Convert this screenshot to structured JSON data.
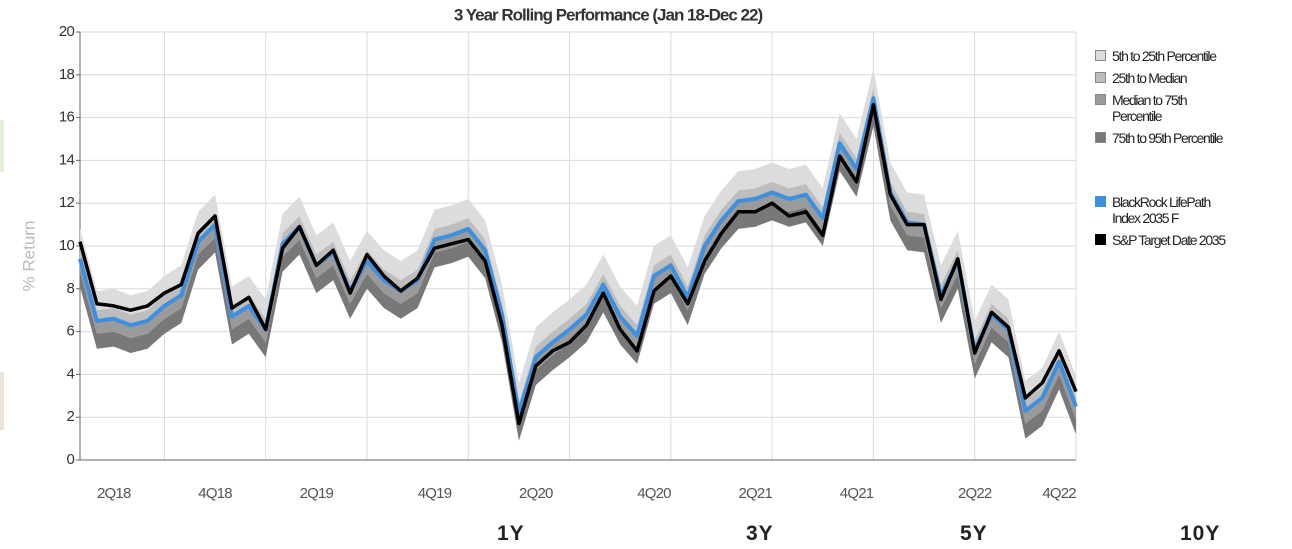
{
  "chart_data": {
    "type": "line",
    "title": "3 Year Rolling Performance (Jan 18-Dec 22)",
    "y_label": "% Return",
    "categories": [
      null,
      null,
      "2Q18",
      null,
      null,
      null,
      null,
      null,
      "4Q18",
      null,
      null,
      null,
      null,
      null,
      "2Q19",
      null,
      null,
      null,
      null,
      null,
      null,
      "4Q19",
      null,
      null,
      null,
      null,
      null,
      "2Q20",
      null,
      null,
      null,
      null,
      null,
      null,
      "4Q20",
      null,
      null,
      null,
      null,
      null,
      "2Q21",
      null,
      null,
      null,
      null,
      null,
      "4Q21",
      null,
      null,
      null,
      null,
      null,
      null,
      "2Q22",
      null,
      null,
      null,
      null,
      "4Q22",
      null
    ],
    "ylim": [
      0,
      20
    ],
    "yticks": [
      0,
      2,
      4,
      6,
      8,
      10,
      12,
      14,
      16,
      18,
      20
    ],
    "grid": true,
    "bands": [
      {
        "name": "5th to 25th Percentile",
        "color": "#dcdcdc",
        "upper": [
          10.8,
          7.9,
          8.0,
          7.7,
          7.9,
          8.6,
          9.1,
          11.6,
          12.4,
          8.1,
          8.6,
          7.5,
          11.5,
          12.3,
          10.5,
          11.1,
          9.3,
          10.7,
          9.8,
          9.3,
          9.8,
          11.7,
          11.9,
          12.2,
          11.2,
          8.2,
          3.6,
          6.2,
          6.9,
          7.5,
          8.2,
          9.6,
          8.1,
          7.2,
          10.0,
          10.5,
          9.0,
          11.4,
          12.6,
          13.5,
          13.6,
          13.9,
          13.6,
          13.8,
          12.7,
          16.2,
          15.0,
          18.3,
          13.9,
          12.5,
          12.4,
          9.1,
          10.7,
          6.5,
          8.2,
          7.5,
          3.7,
          4.3,
          6.0,
          3.9
        ],
        "lower": [
          9.9,
          7.0,
          7.1,
          6.8,
          7.0,
          7.7,
          8.2,
          10.7,
          11.5,
          7.2,
          7.7,
          6.6,
          10.6,
          11.4,
          9.6,
          10.2,
          8.4,
          9.8,
          8.9,
          8.4,
          8.9,
          10.8,
          11.0,
          11.3,
          10.3,
          7.3,
          2.7,
          5.3,
          6.0,
          6.6,
          7.3,
          8.7,
          7.2,
          6.3,
          9.1,
          9.6,
          8.1,
          10.5,
          11.7,
          12.6,
          12.7,
          13.0,
          12.7,
          12.9,
          11.8,
          15.3,
          14.1,
          17.4,
          13.0,
          11.6,
          11.5,
          8.2,
          9.8,
          5.6,
          7.3,
          6.6,
          2.8,
          3.4,
          5.1,
          3.0
        ]
      },
      {
        "name": "25th to Median",
        "color": "#bdbdbd",
        "upper": [
          9.9,
          7.0,
          7.1,
          6.8,
          7.0,
          7.7,
          8.2,
          10.7,
          11.5,
          7.2,
          7.7,
          6.6,
          10.6,
          11.4,
          9.6,
          10.2,
          8.4,
          9.8,
          8.9,
          8.4,
          8.9,
          10.8,
          11.0,
          11.3,
          10.3,
          7.3,
          2.7,
          5.3,
          6.0,
          6.6,
          7.3,
          8.7,
          7.2,
          6.3,
          9.1,
          9.6,
          8.1,
          10.5,
          11.7,
          12.6,
          12.7,
          13.0,
          12.7,
          12.9,
          11.8,
          15.3,
          14.1,
          17.4,
          13.0,
          11.6,
          11.5,
          8.2,
          9.8,
          5.6,
          7.3,
          6.6,
          2.8,
          3.4,
          5.1,
          3.0
        ],
        "lower": [
          9.4,
          6.5,
          6.6,
          6.3,
          6.5,
          7.2,
          7.7,
          10.2,
          11.0,
          6.7,
          7.2,
          6.1,
          10.1,
          10.9,
          9.1,
          9.7,
          7.9,
          9.3,
          8.4,
          7.9,
          8.4,
          10.3,
          10.5,
          10.8,
          9.8,
          6.8,
          2.2,
          4.8,
          5.5,
          6.1,
          6.8,
          8.2,
          6.7,
          5.8,
          8.6,
          9.1,
          7.6,
          10.0,
          11.2,
          12.1,
          12.2,
          12.5,
          12.2,
          12.4,
          11.3,
          14.8,
          13.6,
          16.9,
          12.5,
          11.1,
          11.0,
          7.7,
          9.3,
          5.1,
          6.8,
          6.1,
          2.3,
          2.9,
          4.6,
          2.5
        ]
      },
      {
        "name": "Median to 75th Percentile",
        "color": "#9a9a9a",
        "upper": [
          9.4,
          6.5,
          6.6,
          6.3,
          6.5,
          7.2,
          7.7,
          10.2,
          11.0,
          6.7,
          7.2,
          6.1,
          10.1,
          10.9,
          9.1,
          9.7,
          7.9,
          9.3,
          8.4,
          7.9,
          8.4,
          10.3,
          10.5,
          10.8,
          9.8,
          6.8,
          2.2,
          4.8,
          5.5,
          6.1,
          6.8,
          8.2,
          6.7,
          5.8,
          8.6,
          9.1,
          7.6,
          10.0,
          11.2,
          12.1,
          12.2,
          12.5,
          12.2,
          12.4,
          11.3,
          14.8,
          13.6,
          16.9,
          12.5,
          11.1,
          11.0,
          7.7,
          9.3,
          5.1,
          6.8,
          6.1,
          2.3,
          2.9,
          4.6,
          2.5
        ],
        "lower": [
          8.8,
          5.9,
          6.0,
          5.7,
          5.9,
          6.6,
          7.1,
          9.6,
          10.4,
          6.1,
          6.6,
          5.5,
          9.5,
          10.3,
          8.5,
          9.1,
          7.3,
          8.7,
          7.8,
          7.3,
          7.8,
          9.7,
          9.9,
          10.2,
          9.2,
          6.2,
          1.6,
          4.2,
          4.9,
          5.5,
          6.2,
          7.6,
          6.1,
          5.2,
          8.0,
          8.5,
          7.0,
          9.4,
          10.6,
          11.5,
          11.6,
          11.9,
          11.6,
          11.8,
          10.7,
          14.2,
          13.0,
          16.3,
          11.9,
          10.5,
          10.4,
          7.1,
          8.7,
          4.5,
          6.2,
          5.5,
          1.7,
          2.3,
          4.0,
          1.9
        ]
      },
      {
        "name": "75th to 95th Percentile",
        "color": "#787878",
        "upper": [
          8.8,
          5.9,
          6.0,
          5.7,
          5.9,
          6.6,
          7.1,
          9.6,
          10.4,
          6.1,
          6.6,
          5.5,
          9.5,
          10.3,
          8.5,
          9.1,
          7.3,
          8.7,
          7.8,
          7.3,
          7.8,
          9.7,
          9.9,
          10.2,
          9.2,
          6.2,
          1.6,
          4.2,
          4.9,
          5.5,
          6.2,
          7.6,
          6.1,
          5.2,
          8.0,
          8.5,
          7.0,
          9.4,
          10.6,
          11.5,
          11.6,
          11.9,
          11.6,
          11.8,
          10.7,
          14.2,
          13.0,
          16.3,
          11.9,
          10.5,
          10.4,
          7.1,
          8.7,
          4.5,
          6.2,
          5.5,
          1.7,
          2.3,
          4.0,
          1.9
        ],
        "lower": [
          8.1,
          5.2,
          5.3,
          5.0,
          5.2,
          5.9,
          6.4,
          8.9,
          9.7,
          5.4,
          5.9,
          4.8,
          8.8,
          9.6,
          7.8,
          8.4,
          6.6,
          8.0,
          7.1,
          6.6,
          7.1,
          9.0,
          9.2,
          9.5,
          8.5,
          5.5,
          0.9,
          3.5,
          4.2,
          4.8,
          5.5,
          6.9,
          5.4,
          4.5,
          7.3,
          7.8,
          6.3,
          8.7,
          9.9,
          10.8,
          10.9,
          11.2,
          10.9,
          11.1,
          10.0,
          13.5,
          12.3,
          15.6,
          11.2,
          9.8,
          9.7,
          6.4,
          8.0,
          3.8,
          5.5,
          4.8,
          1.0,
          1.6,
          3.3,
          1.2
        ]
      }
    ],
    "series": [
      {
        "name": "BlackRock LifePath Index 2035 F",
        "color": "#3d8fe0",
        "values": [
          9.4,
          6.5,
          6.6,
          6.3,
          6.5,
          7.2,
          7.7,
          10.2,
          11.0,
          6.7,
          7.2,
          6.1,
          10.1,
          10.9,
          9.1,
          9.7,
          7.9,
          9.3,
          8.4,
          7.9,
          8.4,
          10.3,
          10.5,
          10.8,
          9.8,
          6.8,
          2.2,
          4.8,
          5.5,
          6.1,
          6.8,
          8.2,
          6.7,
          5.8,
          8.6,
          9.1,
          7.6,
          10.0,
          11.2,
          12.1,
          12.2,
          12.5,
          12.2,
          12.4,
          11.3,
          14.8,
          13.6,
          16.9,
          12.5,
          11.1,
          11.0,
          7.7,
          9.3,
          5.1,
          6.8,
          6.1,
          2.3,
          2.9,
          4.6,
          2.5
        ]
      },
      {
        "name": "S&P Target Date 2035",
        "color": "#000000",
        "values": [
          10.2,
          7.3,
          7.2,
          7.0,
          7.2,
          7.8,
          8.2,
          10.6,
          11.4,
          7.1,
          7.6,
          6.1,
          9.9,
          10.9,
          9.1,
          9.8,
          7.8,
          9.6,
          8.6,
          7.9,
          8.5,
          9.9,
          10.1,
          10.3,
          9.3,
          6.3,
          1.7,
          4.4,
          5.1,
          5.5,
          6.3,
          7.8,
          6.1,
          5.1,
          7.9,
          8.6,
          7.3,
          9.3,
          10.6,
          11.6,
          11.6,
          12.0,
          11.4,
          11.6,
          10.5,
          14.2,
          13.0,
          16.6,
          12.4,
          11.0,
          11.0,
          7.5,
          9.4,
          5.0,
          6.9,
          6.2,
          2.9,
          3.6,
          5.1,
          3.2
        ]
      }
    ],
    "period_buttons": [
      "1Y",
      "3Y",
      "5Y",
      "10Y"
    ]
  }
}
